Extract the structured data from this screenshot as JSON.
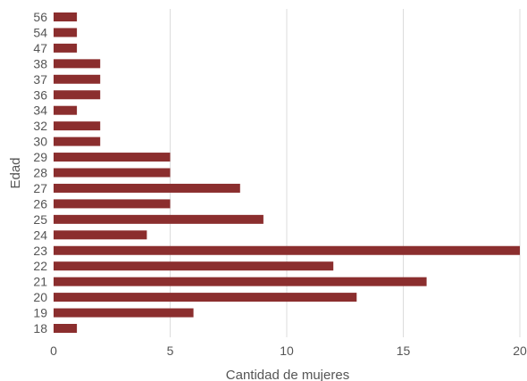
{
  "chart_data": {
    "type": "bar",
    "orientation": "horizontal",
    "title": "",
    "xlabel": "Cantidad de mujeres",
    "ylabel": "Edad",
    "xlim": [
      0,
      20
    ],
    "xticks": [
      0,
      5,
      10,
      15,
      20
    ],
    "grid": "vertical",
    "legend": "none",
    "bar_color": "#8b2e2e",
    "categories": [
      "18",
      "19",
      "20",
      "21",
      "22",
      "23",
      "24",
      "25",
      "26",
      "27",
      "28",
      "29",
      "30",
      "32",
      "34",
      "36",
      "37",
      "38",
      "47",
      "54",
      "56"
    ],
    "values": [
      1,
      6,
      13,
      16,
      12,
      20,
      4,
      9,
      5,
      8,
      5,
      5,
      2,
      2,
      1,
      2,
      2,
      2,
      1,
      1,
      1
    ]
  }
}
